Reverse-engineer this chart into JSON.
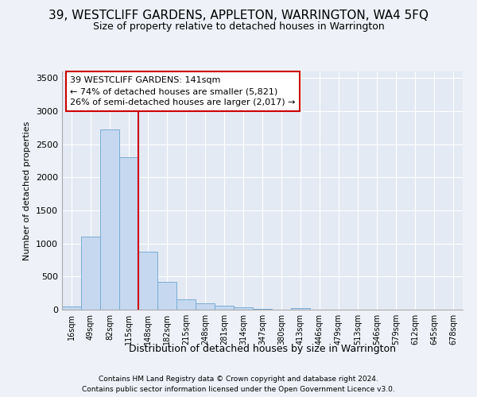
{
  "title": "39, WESTCLIFF GARDENS, APPLETON, WARRINGTON, WA4 5FQ",
  "subtitle": "Size of property relative to detached houses in Warrington",
  "xlabel": "Distribution of detached houses by size in Warrington",
  "ylabel": "Number of detached properties",
  "bin_labels": [
    "16sqm",
    "49sqm",
    "82sqm",
    "115sqm",
    "148sqm",
    "182sqm",
    "215sqm",
    "248sqm",
    "281sqm",
    "314sqm",
    "347sqm",
    "380sqm",
    "413sqm",
    "446sqm",
    "479sqm",
    "513sqm",
    "546sqm",
    "579sqm",
    "612sqm",
    "645sqm",
    "678sqm"
  ],
  "bar_values": [
    50,
    1100,
    2720,
    2300,
    880,
    420,
    160,
    100,
    60,
    40,
    10,
    5,
    30,
    5,
    3,
    2,
    2,
    1,
    1,
    1,
    0
  ],
  "bar_color": "#c5d8f0",
  "bar_edge_color": "#7aadd4",
  "property_line_color": "#cc0000",
  "annotation_line1": "39 WESTCLIFF GARDENS: 141sqm",
  "annotation_line2": "← 74% of detached houses are smaller (5,821)",
  "annotation_line3": "26% of semi-detached houses are larger (2,017) →",
  "annotation_box_color": "#ffffff",
  "annotation_box_edge": "#cc0000",
  "ylim": [
    0,
    3600
  ],
  "yticks": [
    0,
    500,
    1000,
    1500,
    2000,
    2500,
    3000,
    3500
  ],
  "footer1": "Contains HM Land Registry data © Crown copyright and database right 2024.",
  "footer2": "Contains public sector information licensed under the Open Government Licence v3.0.",
  "bg_color": "#eef2f8",
  "plot_bg_color": "#e4eaf4",
  "title_fontsize": 11,
  "subtitle_fontsize": 9,
  "ylabel_fontsize": 8,
  "xlabel_fontsize": 9
}
